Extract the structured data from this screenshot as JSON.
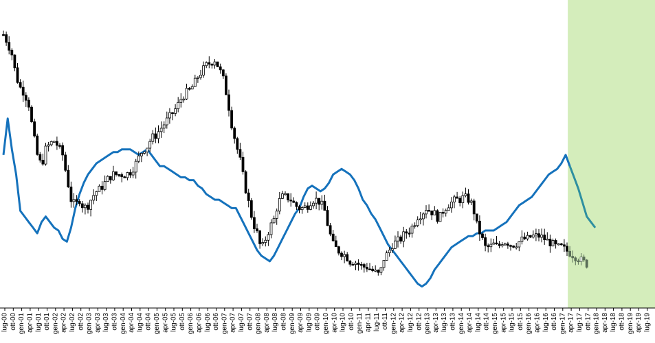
{
  "chart_data": {
    "type": "line",
    "title": "",
    "xlabel": "",
    "ylabel": "",
    "x_tick_labels": [
      "lug-00",
      "ott-00",
      "gen-01",
      "apr-01",
      "lug-01",
      "ott-01",
      "gen-02",
      "apr-02",
      "lug-02",
      "ott-02",
      "gen-03",
      "apr-03",
      "lug-03",
      "ott-03",
      "gen-04",
      "apr-04",
      "lug-04",
      "ott-04",
      "gen-05",
      "apr-05",
      "lug-05",
      "ott-05",
      "gen-06",
      "apr-06",
      "lug-06",
      "ott-06",
      "gen-07",
      "apr-07",
      "lug-07",
      "ott-07",
      "gen-08",
      "apr-08",
      "lug-08",
      "ott-08",
      "gen-09",
      "apr-09",
      "lug-09",
      "ott-09",
      "gen-10",
      "apr-10",
      "lug-10",
      "ott-10",
      "gen-11",
      "apr-11",
      "lug-11",
      "ott-11",
      "gen-12",
      "apr-12",
      "lug-12",
      "ott-12",
      "gen-13",
      "apr-13",
      "lug-13",
      "ott-13",
      "gen-14",
      "apr-14",
      "lug-14",
      "ott-14",
      "gen-15",
      "apr-15",
      "lug-15",
      "ott-15",
      "gen-16",
      "apr-16",
      "lug-16",
      "ott-16",
      "gen-17",
      "apr-17",
      "lug-17",
      "ott-17",
      "gen-18",
      "apr-18",
      "lug-18",
      "ott-18",
      "gen-19",
      "apr-19",
      "lug-19"
    ],
    "y_axis_visible": false,
    "y_range": [
      0,
      100
    ],
    "grid": false,
    "legend": "none",
    "highlight_region": {
      "from_tick": 67,
      "to_tick": 76,
      "color": "#d4edbb"
    },
    "series": [
      {
        "type": "candlestick",
        "color": "#000000",
        "forecast_color": "#5a6e58",
        "forecast_from_tick": 67,
        "points": [
          [
            0,
            95
          ],
          [
            0.5,
            92
          ],
          [
            1,
            88
          ],
          [
            1.5,
            80
          ],
          [
            2,
            76
          ],
          [
            2.5,
            74
          ],
          [
            3,
            70
          ],
          [
            3.5,
            60
          ],
          [
            4,
            52
          ],
          [
            4.5,
            48
          ],
          [
            5,
            54
          ],
          [
            5.5,
            56
          ],
          [
            6,
            57
          ],
          [
            6.5,
            55
          ],
          [
            7,
            52
          ],
          [
            7.5,
            44
          ],
          [
            8,
            36
          ],
          [
            8.5,
            34
          ],
          [
            9,
            36
          ],
          [
            9.5,
            33
          ],
          [
            10,
            34
          ],
          [
            10.5,
            37
          ],
          [
            11,
            39
          ],
          [
            11.5,
            40
          ],
          [
            12,
            42
          ],
          [
            12.5,
            44
          ],
          [
            13,
            45
          ],
          [
            13.5,
            45
          ],
          [
            14,
            45
          ],
          [
            14.5,
            45
          ],
          [
            15,
            46
          ],
          [
            15.5,
            48
          ],
          [
            16,
            51
          ],
          [
            16.5,
            54
          ],
          [
            17,
            55
          ],
          [
            17.5,
            58
          ],
          [
            18,
            59
          ],
          [
            18.5,
            61
          ],
          [
            19,
            63
          ],
          [
            19.5,
            65
          ],
          [
            20,
            67
          ],
          [
            20.5,
            69
          ],
          [
            21,
            72
          ],
          [
            21.5,
            74
          ],
          [
            22,
            75
          ],
          [
            22.5,
            77
          ],
          [
            23,
            80
          ],
          [
            23.5,
            82
          ],
          [
            24,
            84
          ],
          [
            24.5,
            85
          ],
          [
            25,
            86
          ],
          [
            25.5,
            83
          ],
          [
            26,
            79
          ],
          [
            26.5,
            72
          ],
          [
            27,
            63
          ],
          [
            27.5,
            56
          ],
          [
            28,
            50
          ],
          [
            28.5,
            42
          ],
          [
            29,
            35
          ],
          [
            29.5,
            28
          ],
          [
            30,
            24
          ],
          [
            30.5,
            18
          ],
          [
            31,
            22
          ],
          [
            31.5,
            26
          ],
          [
            32,
            29
          ],
          [
            32.5,
            35
          ],
          [
            33,
            37
          ],
          [
            33.5,
            37
          ],
          [
            34,
            36
          ],
          [
            34.5,
            34
          ],
          [
            35,
            33
          ],
          [
            35.5,
            33
          ],
          [
            36,
            34
          ],
          [
            36.5,
            36
          ],
          [
            37,
            36
          ],
          [
            37.5,
            35
          ],
          [
            38,
            32
          ],
          [
            38.5,
            25
          ],
          [
            39,
            20
          ],
          [
            39.5,
            18
          ],
          [
            40,
            17
          ],
          [
            40.5,
            16
          ],
          [
            41,
            14
          ],
          [
            41.5,
            14
          ],
          [
            42,
            13
          ],
          [
            42.5,
            12
          ],
          [
            43,
            12
          ],
          [
            43.5,
            11
          ],
          [
            44,
            10
          ],
          [
            44.5,
            9
          ],
          [
            45,
            15
          ],
          [
            45.5,
            17
          ],
          [
            46,
            20
          ],
          [
            46.5,
            21
          ],
          [
            47,
            22
          ],
          [
            47.5,
            24
          ],
          [
            48,
            25
          ],
          [
            48.5,
            27
          ],
          [
            49,
            30
          ],
          [
            49.5,
            31
          ],
          [
            50,
            33
          ],
          [
            50.5,
            32
          ],
          [
            51,
            31
          ],
          [
            51.5,
            29
          ],
          [
            52,
            32
          ],
          [
            52.5,
            34
          ],
          [
            53,
            35
          ],
          [
            53.5,
            36
          ],
          [
            54,
            36
          ],
          [
            54.5,
            37
          ],
          [
            55,
            36
          ],
          [
            55.5,
            34
          ],
          [
            56,
            27
          ],
          [
            56.5,
            23
          ],
          [
            57,
            19
          ],
          [
            57.5,
            19
          ],
          [
            58,
            20
          ],
          [
            58.5,
            19
          ],
          [
            59,
            21
          ],
          [
            59.5,
            21
          ],
          [
            60,
            20
          ],
          [
            60.5,
            20
          ],
          [
            61,
            21
          ],
          [
            61.5,
            22
          ],
          [
            62,
            22
          ],
          [
            62.5,
            23
          ],
          [
            63,
            23
          ],
          [
            63.5,
            23
          ],
          [
            64,
            22
          ],
          [
            64.5,
            21
          ],
          [
            65,
            20
          ],
          [
            65.5,
            19
          ],
          [
            66,
            19
          ],
          [
            66.5,
            18
          ],
          [
            67,
            17
          ],
          [
            67.5,
            16
          ],
          [
            68,
            15
          ],
          [
            68.5,
            14
          ],
          [
            69,
            13
          ]
        ]
      },
      {
        "type": "line",
        "color": "#1572bc",
        "forecast_color": "#2e8fa0",
        "forecast_from_tick": 67,
        "points": [
          [
            0,
            52
          ],
          [
            0.5,
            65
          ],
          [
            1,
            54
          ],
          [
            1.5,
            45
          ],
          [
            2,
            32
          ],
          [
            2.5,
            30
          ],
          [
            3,
            28
          ],
          [
            3.5,
            26
          ],
          [
            4,
            24
          ],
          [
            4.5,
            28
          ],
          [
            5,
            30
          ],
          [
            5.5,
            28
          ],
          [
            6,
            26
          ],
          [
            6.5,
            25
          ],
          [
            7,
            22
          ],
          [
            7.5,
            21
          ],
          [
            8,
            26
          ],
          [
            8.5,
            33
          ],
          [
            9,
            38
          ],
          [
            9.5,
            42
          ],
          [
            10,
            45
          ],
          [
            10.5,
            47
          ],
          [
            11,
            49
          ],
          [
            11.5,
            50
          ],
          [
            12,
            51
          ],
          [
            12.5,
            52
          ],
          [
            13,
            53
          ],
          [
            13.5,
            53
          ],
          [
            14,
            54
          ],
          [
            14.5,
            54
          ],
          [
            15,
            54
          ],
          [
            15.5,
            53
          ],
          [
            16,
            52
          ],
          [
            16.5,
            53
          ],
          [
            17,
            54
          ],
          [
            17.5,
            52
          ],
          [
            18,
            50
          ],
          [
            18.5,
            48
          ],
          [
            19,
            48
          ],
          [
            19.5,
            47
          ],
          [
            20,
            46
          ],
          [
            20.5,
            45
          ],
          [
            21,
            44
          ],
          [
            21.5,
            44
          ],
          [
            22,
            43
          ],
          [
            22.5,
            43
          ],
          [
            23,
            41
          ],
          [
            23.5,
            40
          ],
          [
            24,
            38
          ],
          [
            24.5,
            37
          ],
          [
            25,
            36
          ],
          [
            25.5,
            36
          ],
          [
            26,
            35
          ],
          [
            26.5,
            34
          ],
          [
            27,
            33
          ],
          [
            27.5,
            33
          ],
          [
            28,
            30
          ],
          [
            28.5,
            27
          ],
          [
            29,
            24
          ],
          [
            29.5,
            21
          ],
          [
            30,
            18
          ],
          [
            30.5,
            16
          ],
          [
            31,
            15
          ],
          [
            31.5,
            14
          ],
          [
            32,
            16
          ],
          [
            32.5,
            19
          ],
          [
            33,
            22
          ],
          [
            33.5,
            25
          ],
          [
            34,
            28
          ],
          [
            34.5,
            31
          ],
          [
            35,
            33
          ],
          [
            35.5,
            37
          ],
          [
            36,
            40
          ],
          [
            36.5,
            41
          ],
          [
            37,
            40
          ],
          [
            37.5,
            39
          ],
          [
            38,
            40
          ],
          [
            38.5,
            42
          ],
          [
            39,
            45
          ],
          [
            39.5,
            46
          ],
          [
            40,
            47
          ],
          [
            40.5,
            46
          ],
          [
            41,
            45
          ],
          [
            41.5,
            43
          ],
          [
            42,
            40
          ],
          [
            42.5,
            36
          ],
          [
            43,
            34
          ],
          [
            43.5,
            31
          ],
          [
            44,
            29
          ],
          [
            44.5,
            26
          ],
          [
            45,
            23
          ],
          [
            45.5,
            20
          ],
          [
            46,
            18
          ],
          [
            46.5,
            16
          ],
          [
            47,
            14
          ],
          [
            47.5,
            12
          ],
          [
            48,
            10
          ],
          [
            48.5,
            8
          ],
          [
            49,
            6
          ],
          [
            49.5,
            5
          ],
          [
            50,
            6
          ],
          [
            50.5,
            8
          ],
          [
            51,
            11
          ],
          [
            51.5,
            13
          ],
          [
            52,
            15
          ],
          [
            52.5,
            17
          ],
          [
            53,
            19
          ],
          [
            53.5,
            20
          ],
          [
            54,
            21
          ],
          [
            54.5,
            22
          ],
          [
            55,
            23
          ],
          [
            55.5,
            23
          ],
          [
            56,
            24
          ],
          [
            56.5,
            24
          ],
          [
            57,
            25
          ],
          [
            57.5,
            25
          ],
          [
            58,
            25
          ],
          [
            58.5,
            26
          ],
          [
            59,
            27
          ],
          [
            59.5,
            28
          ],
          [
            60,
            30
          ],
          [
            60.5,
            32
          ],
          [
            61,
            34
          ],
          [
            61.5,
            35
          ],
          [
            62,
            36
          ],
          [
            62.5,
            37
          ],
          [
            63,
            39
          ],
          [
            63.5,
            41
          ],
          [
            64,
            43
          ],
          [
            64.5,
            45
          ],
          [
            65,
            46
          ],
          [
            65.5,
            47
          ],
          [
            66,
            49
          ],
          [
            66.5,
            52
          ],
          [
            67,
            48
          ],
          [
            67.5,
            44
          ],
          [
            68,
            40
          ],
          [
            68.5,
            35
          ],
          [
            69,
            30
          ],
          [
            69.5,
            28
          ],
          [
            70,
            26
          ]
        ]
      }
    ]
  }
}
